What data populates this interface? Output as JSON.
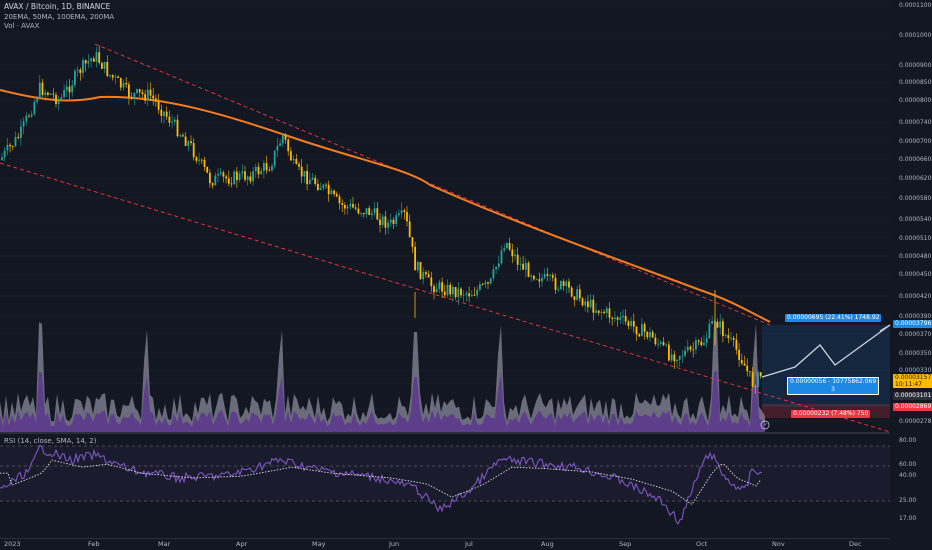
{
  "header": {
    "title": "AVAX / Bitcoin, 1D, BINANCE",
    "indicators": "20EMA, 50MA, 100EMA, 200MA",
    "volume": "Vol · AVAX"
  },
  "rsi_header": "RSI (14, close, SMA, 14, 2)",
  "price_labels": {
    "current": "0.00003157",
    "countdown": "10:11:47",
    "level_a": "0.00003101",
    "level_b": "0.00002869",
    "target": "0.00003796"
  },
  "tool_labels": {
    "top": "0.00000695 (22.41%) 1748.92",
    "mid_line1": "0.00000056 - 10775862.069",
    "mid_line2": "3",
    "bottom": "0.00000232 (7.48%) 750"
  },
  "colors": {
    "background": "#131722",
    "up": "#26a69a",
    "down": "#ffbb00",
    "ema": "#f57c1f",
    "channel": "#f23645",
    "volume": "#8a8a9a",
    "volume_purple": "#5b3a8c",
    "rsi": "#7e57c2",
    "projection": "#1e88e5"
  },
  "chart_data": {
    "type": "candlestick",
    "title": "AVAX / Bitcoin, 1D, BINANCE",
    "y_scale": "log",
    "ylim": [
      2.78e-05,
      1.1e-05
    ],
    "y_ticks": [
      "0.00011000",
      "0.00010000",
      "0.00009000",
      "0.00008500",
      "0.00008000",
      "0.00007400",
      "0.00007000",
      "0.00006600",
      "0.00006200",
      "0.00005800",
      "0.00005400",
      "0.00005100",
      "0.00004800",
      "0.00004500",
      "0.00004200",
      "0.00003900",
      "0.00003700",
      "0.00003500",
      "0.00003300",
      "0.00003100",
      "0.00002950",
      "0.00002780"
    ],
    "x_ticks": [
      "2023",
      "Feb",
      "Mar",
      "Apr",
      "May",
      "Jun",
      "Jul",
      "Aug",
      "Sep",
      "Oct",
      "Nov",
      "Dec"
    ],
    "approx_close_path": [
      {
        "date": "2023-01-01",
        "close": 6.3e-05
      },
      {
        "date": "2023-01-15",
        "close": 8.2e-05
      },
      {
        "date": "2023-02-01",
        "close": 9.5e-05
      },
      {
        "date": "2023-02-20",
        "close": 8.6e-05
      },
      {
        "date": "2023-03-10",
        "close": 7e-05
      },
      {
        "date": "2023-03-25",
        "close": 5.9e-05
      },
      {
        "date": "2023-04-15",
        "close": 6.4e-05
      },
      {
        "date": "2023-04-22",
        "close": 7e-05
      },
      {
        "date": "2023-05-10",
        "close": 5.6e-05
      },
      {
        "date": "2023-05-28",
        "close": 5.3e-05
      },
      {
        "date": "2023-06-06",
        "close": 5.1e-05
      },
      {
        "date": "2023-06-12",
        "close": 4.5e-05
      },
      {
        "date": "2023-06-30",
        "close": 4.2e-05
      },
      {
        "date": "2023-07-10",
        "close": 4.9e-05
      },
      {
        "date": "2023-07-25",
        "close": 4.5e-05
      },
      {
        "date": "2023-08-15",
        "close": 3.9e-05
      },
      {
        "date": "2023-09-01",
        "close": 3.8e-05
      },
      {
        "date": "2023-09-20",
        "close": 3.3e-05
      },
      {
        "date": "2023-10-01",
        "close": 3.5e-05
      },
      {
        "date": "2023-10-08",
        "close": 3.8e-05
      },
      {
        "date": "2023-10-18",
        "close": 3e-05
      },
      {
        "date": "2023-10-22",
        "close": 3.16e-05
      }
    ],
    "rsi_y_ticks": [
      "80.00",
      "60.00",
      "40.00",
      "25.00",
      "17.00"
    ]
  }
}
